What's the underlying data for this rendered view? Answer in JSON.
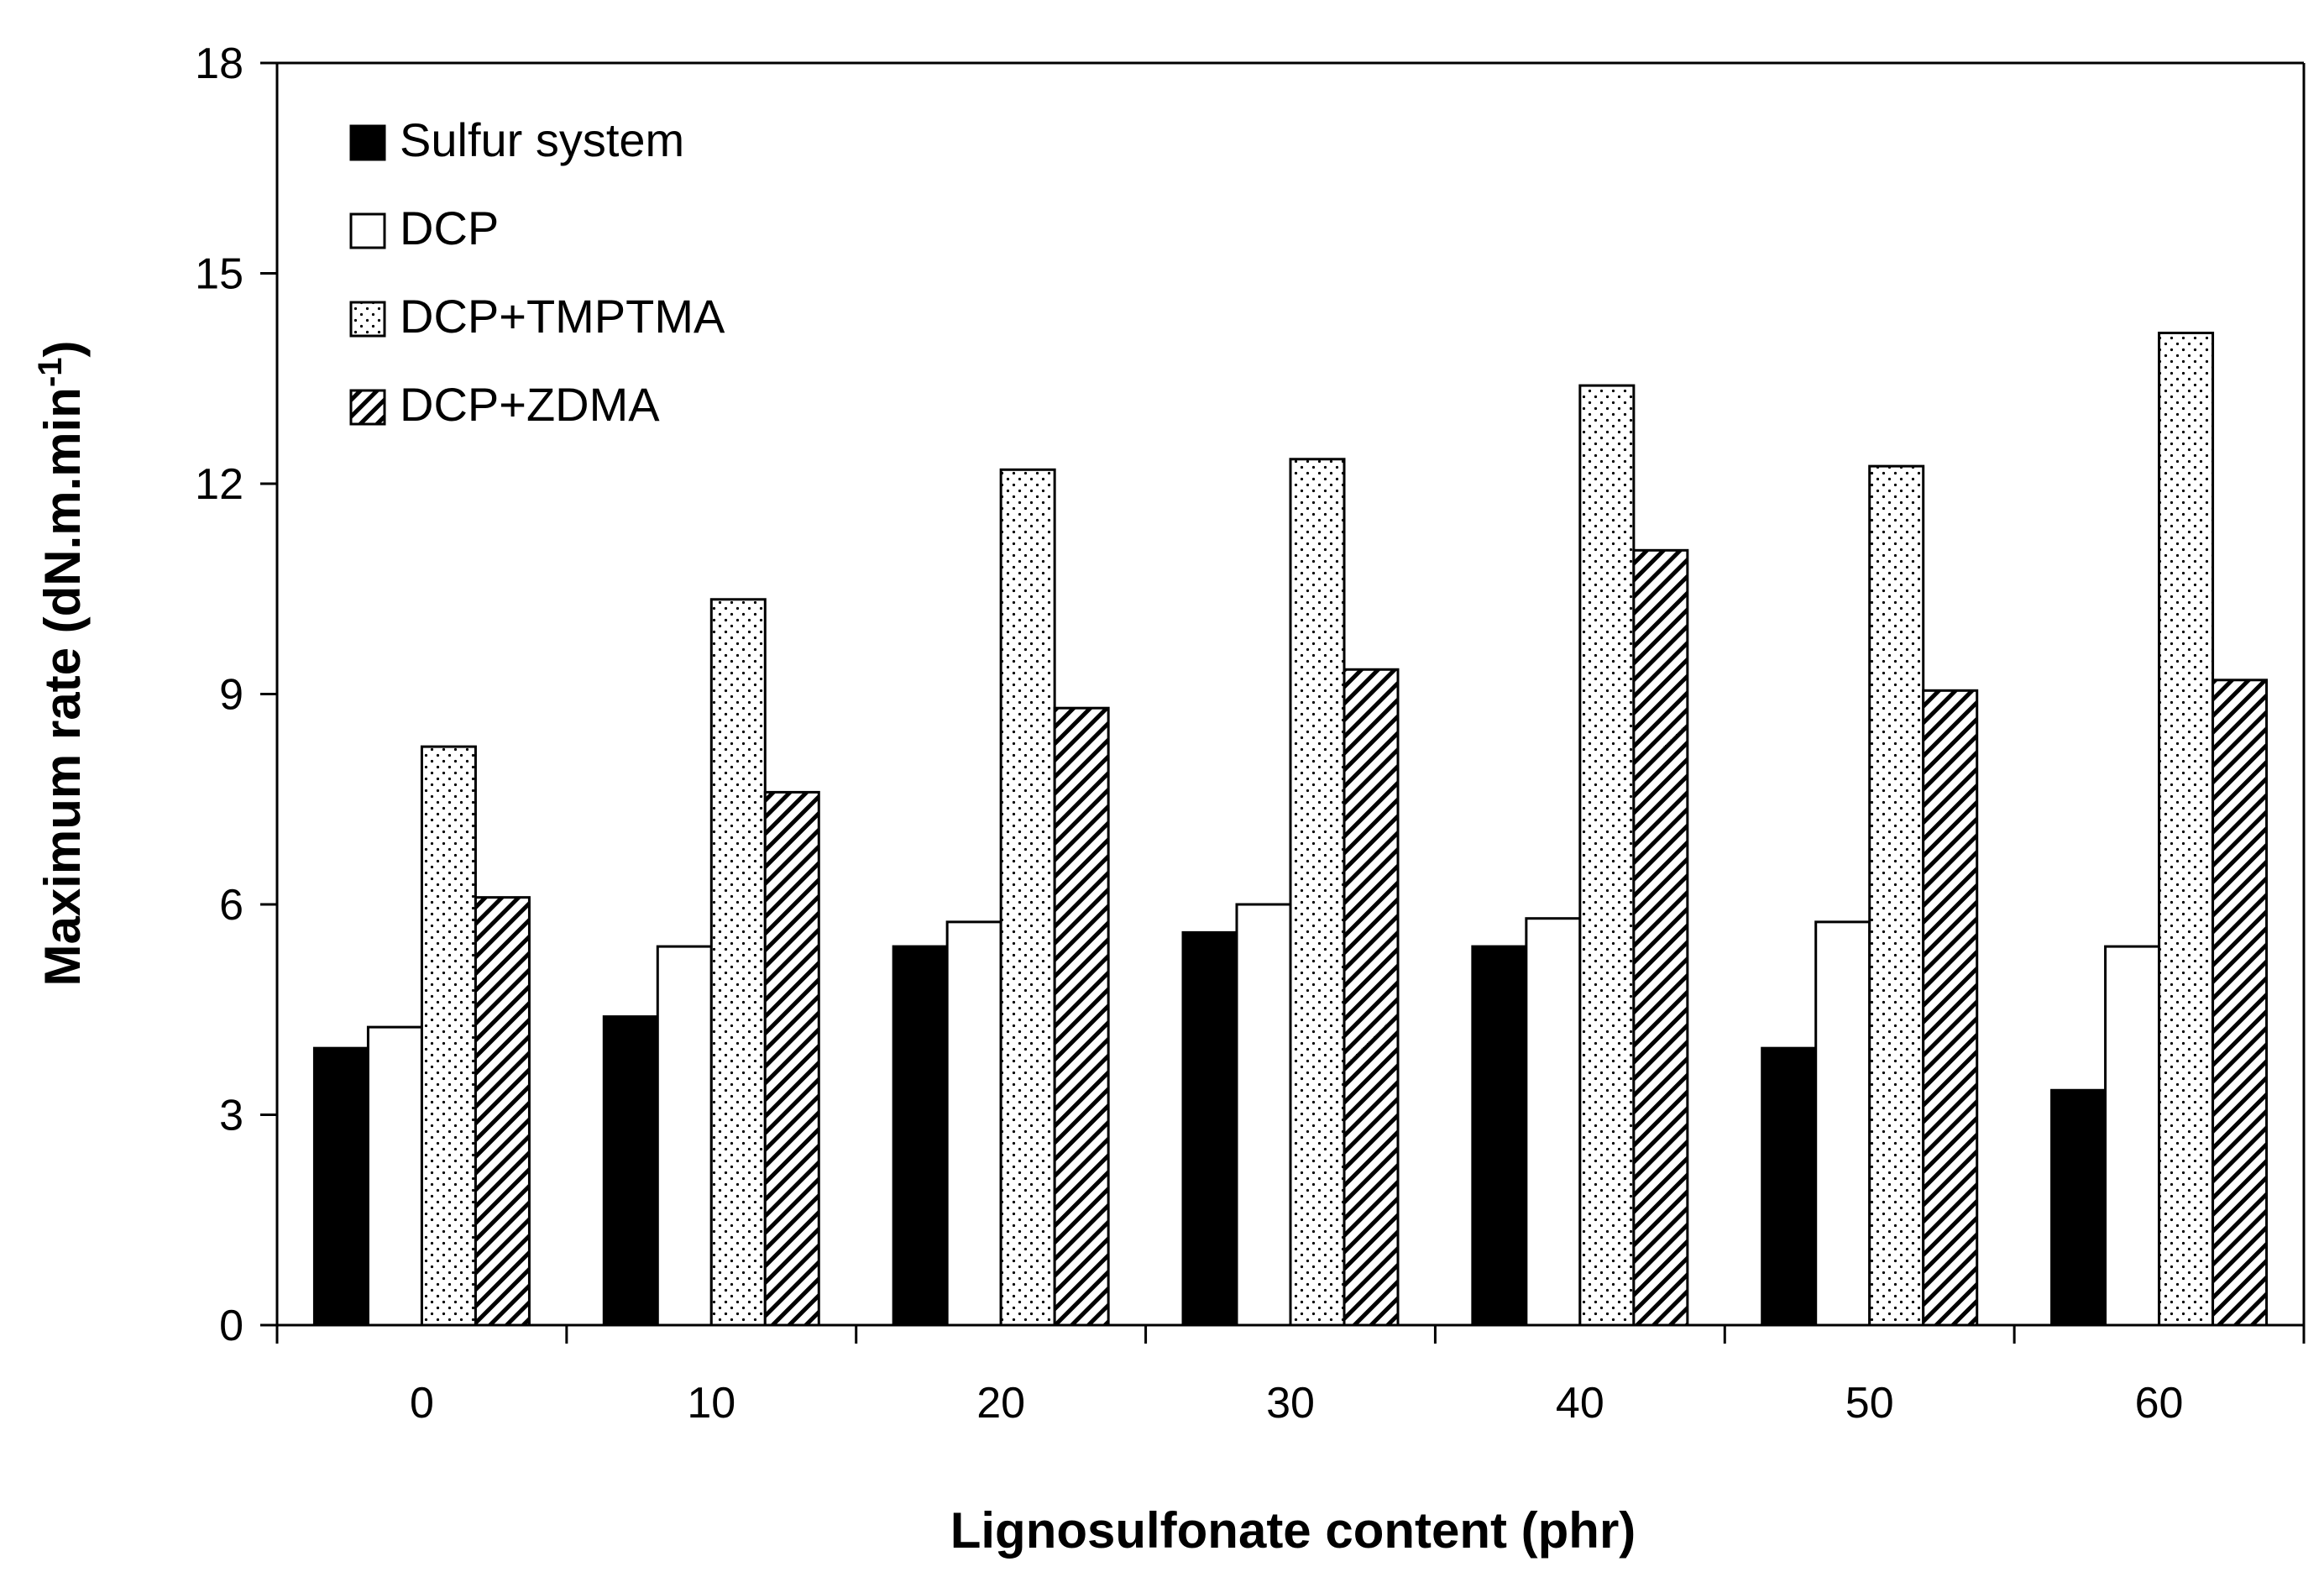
{
  "chart_data": {
    "type": "bar",
    "title": "",
    "xlabel": "Lignosulfonate content (phr)",
    "ylabel": "Maximum rate (dN.m.min",
    "ylabel_superscript": "-1",
    "ylabel_suffix": ")",
    "categories": [
      "0",
      "10",
      "20",
      "30",
      "40",
      "50",
      "60"
    ],
    "ylim": [
      0,
      18
    ],
    "yticks": [
      "0",
      "3",
      "6",
      "9",
      "12",
      "15",
      "18"
    ],
    "grid": false,
    "legend_position": "top-left",
    "series": [
      {
        "name": "Sulfur system",
        "fill": "solid",
        "values": [
          3.95,
          4.4,
          5.4,
          5.6,
          5.4,
          3.95,
          3.35
        ]
      },
      {
        "name": "DCP",
        "fill": "none",
        "values": [
          4.25,
          5.4,
          5.75,
          6.0,
          5.8,
          5.75,
          5.4
        ]
      },
      {
        "name": "DCP+TMPTMA",
        "fill": "dots",
        "values": [
          8.25,
          10.35,
          12.2,
          12.35,
          13.4,
          12.25,
          14.15
        ]
      },
      {
        "name": "DCP+ZDMA",
        "fill": "hatch",
        "values": [
          6.1,
          7.6,
          8.8,
          9.35,
          11.05,
          9.05,
          9.2
        ]
      }
    ]
  }
}
